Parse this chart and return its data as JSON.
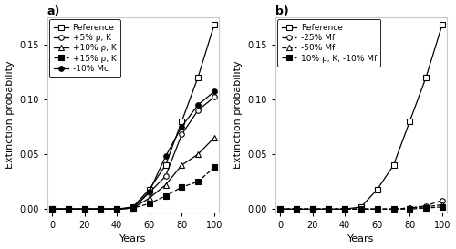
{
  "x": [
    0,
    10,
    20,
    30,
    40,
    50,
    60,
    70,
    80,
    90,
    100
  ],
  "panel_a": {
    "title": "a)",
    "series": [
      {
        "label": "Reference",
        "y": [
          0.0,
          0.0,
          0.0,
          0.0,
          0.0,
          0.002,
          0.018,
          0.04,
          0.08,
          0.12,
          0.168
        ],
        "marker": "s",
        "filled": false,
        "linestyle": "-"
      },
      {
        "label": "+5% ρ, K",
        "y": [
          0.0,
          0.0,
          0.0,
          0.0,
          0.0,
          0.001,
          0.015,
          0.03,
          0.068,
          0.09,
          0.102
        ],
        "marker": "o",
        "filled": false,
        "linestyle": "-"
      },
      {
        "label": "+10% ρ, K",
        "y": [
          0.0,
          0.0,
          0.0,
          0.0,
          0.0,
          0.001,
          0.01,
          0.022,
          0.04,
          0.05,
          0.065
        ],
        "marker": "^",
        "filled": false,
        "linestyle": "-"
      },
      {
        "label": "+15% ρ, K",
        "y": [
          0.0,
          0.0,
          0.0,
          0.0,
          0.0,
          0.001,
          0.005,
          0.012,
          0.02,
          0.025,
          0.038
        ],
        "marker": "s",
        "filled": true,
        "linestyle": "--"
      },
      {
        "label": "-10% Mc",
        "y": [
          0.0,
          0.0,
          0.0,
          0.0,
          0.0,
          0.001,
          0.016,
          0.048,
          0.075,
          0.095,
          0.107
        ],
        "marker": "o",
        "filled": true,
        "linestyle": "-"
      }
    ],
    "ylabel": "Extinction probability",
    "xlabel": "Years",
    "ylim": [
      -0.003,
      0.175
    ],
    "yticks": [
      0.0,
      0.05,
      0.1,
      0.15
    ],
    "xticks": [
      0,
      20,
      40,
      60,
      80,
      100
    ]
  },
  "panel_b": {
    "title": "b)",
    "series": [
      {
        "label": "Reference",
        "y": [
          0.0,
          0.0,
          0.0,
          0.0,
          0.0,
          0.002,
          0.018,
          0.04,
          0.08,
          0.12,
          0.168
        ],
        "marker": "s",
        "filled": false,
        "linestyle": "-"
      },
      {
        "label": "-25% Mf",
        "y": [
          0.0,
          0.0,
          0.0,
          0.0,
          0.0,
          0.0,
          0.0,
          0.0,
          0.001,
          0.003,
          0.008
        ],
        "marker": "o",
        "filled": false,
        "linestyle": "--"
      },
      {
        "label": "-50% Mf",
        "y": [
          0.0,
          0.0,
          0.0,
          0.0,
          0.0,
          0.0,
          0.0,
          0.0,
          0.001,
          0.002,
          0.004
        ],
        "marker": "^",
        "filled": false,
        "linestyle": "--"
      },
      {
        "label": "10% ρ, K; -10% Mf",
        "y": [
          0.0,
          0.0,
          0.0,
          0.0,
          0.0,
          0.0,
          0.0,
          0.0,
          0.0,
          0.001,
          0.002
        ],
        "marker": "s",
        "filled": true,
        "linestyle": "--"
      }
    ],
    "ylabel": "Extinction probability",
    "xlabel": "Years",
    "ylim": [
      -0.003,
      0.175
    ],
    "yticks": [
      0.0,
      0.05,
      0.1,
      0.15
    ],
    "xticks": [
      0,
      20,
      40,
      60,
      80,
      100
    ]
  },
  "background_color": "#ffffff",
  "axes_color": "#c8c8c8",
  "markersize": 4,
  "linewidth": 0.9,
  "legend_fontsize": 6.5,
  "tick_fontsize": 7,
  "label_fontsize": 8
}
